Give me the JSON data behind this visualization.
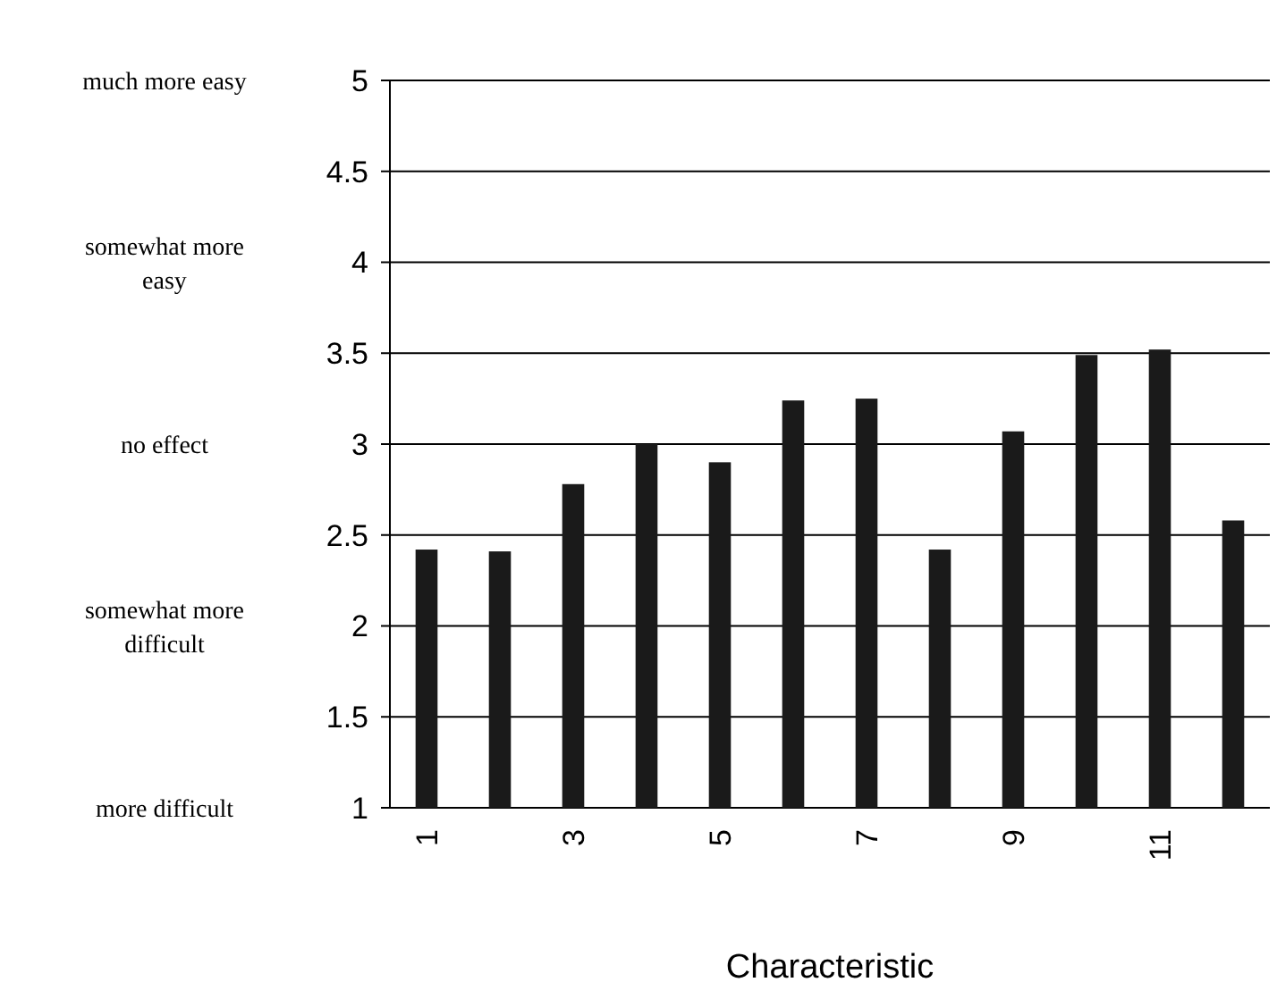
{
  "chart_data": {
    "type": "bar",
    "xlabel": "Characteristic",
    "categories": [
      "1",
      null,
      "3",
      null,
      "5",
      null,
      "7",
      null,
      "9",
      null,
      "11",
      null
    ],
    "values": [
      2.42,
      2.41,
      2.78,
      3.0,
      2.9,
      3.24,
      3.25,
      2.42,
      3.07,
      3.49,
      3.52,
      2.58
    ],
    "color": "#1a1a1a",
    "ylim": [
      1,
      5
    ],
    "yticks": [
      1,
      1.5,
      2,
      2.5,
      3,
      3.5,
      4,
      4.5,
      5
    ],
    "grid": "y",
    "annotations": [
      "much more easy",
      "somewhat more easy",
      "no effect",
      "somewhat more difficult",
      "more difficult"
    ]
  }
}
